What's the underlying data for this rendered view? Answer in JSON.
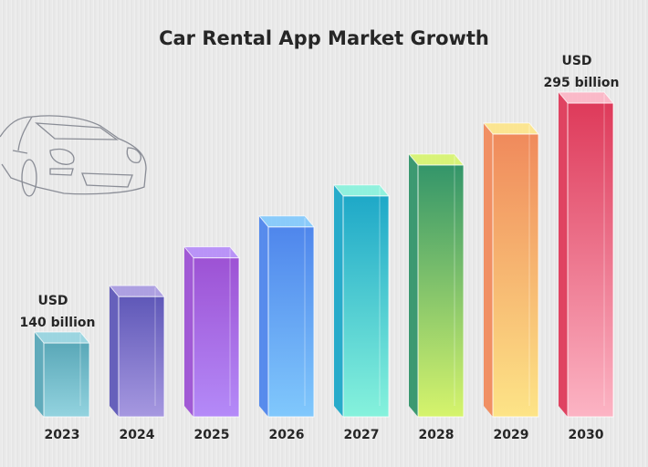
{
  "chart_data": {
    "type": "bar",
    "title": "Car Rental App Market Growth",
    "categories": [
      "2023",
      "2024",
      "2025",
      "2026",
      "2027",
      "2028",
      "2029",
      "2030"
    ],
    "values": [
      140,
      170,
      195,
      215,
      235,
      255,
      275,
      295
    ],
    "unit": "USD billion",
    "annotations": [
      {
        "category": "2023",
        "line1": "USD",
        "line2": "140 billion"
      },
      {
        "category": "2030",
        "line1": "USD",
        "line2": "295 billion"
      }
    ],
    "colors": [
      [
        "#5aa8b8",
        "#93d3df"
      ],
      [
        "#5f58b8",
        "#a698e0"
      ],
      [
        "#9d52d4",
        "#b48af8"
      ],
      [
        "#4f86ec",
        "#80c8fc"
      ],
      [
        "#1ea8c8",
        "#86f2dc"
      ],
      [
        "#33956a",
        "#d6f46c"
      ],
      [
        "#f08a5c",
        "#fde487"
      ],
      [
        "#de3a5a",
        "#fcb4c4"
      ]
    ],
    "grid": false,
    "legend": "none",
    "decoration": "car-outline-icon"
  }
}
